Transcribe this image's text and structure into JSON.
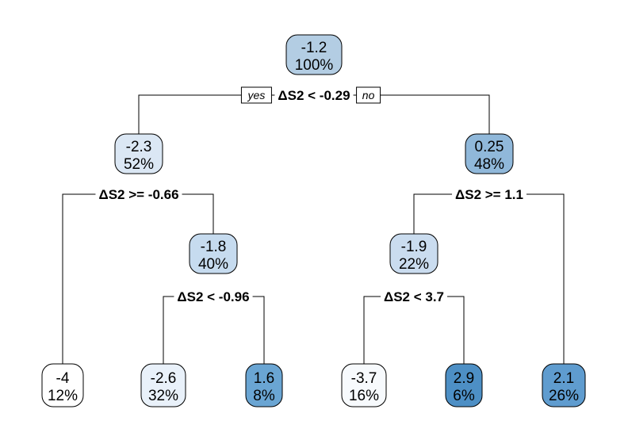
{
  "tree": {
    "branch_labels": {
      "yes": "yes",
      "no": "no"
    },
    "nodes": [
      {
        "id": "root",
        "value": "-1.2",
        "percent": "100%",
        "fill": "#b3cde3"
      },
      {
        "id": "n2",
        "value": "-2.3",
        "percent": "52%",
        "fill": "#dbe7f4"
      },
      {
        "id": "n3",
        "value": "0.25",
        "percent": "48%",
        "fill": "#90b8da"
      },
      {
        "id": "n4",
        "value": "-1.8",
        "percent": "40%",
        "fill": "#c6dbef"
      },
      {
        "id": "n5",
        "value": "-1.9",
        "percent": "22%",
        "fill": "#cadcef"
      },
      {
        "id": "l1",
        "value": "-4",
        "percent": "12%",
        "fill": "#ffffff"
      },
      {
        "id": "l2",
        "value": "-2.6",
        "percent": "32%",
        "fill": "#e9f1fa"
      },
      {
        "id": "l3",
        "value": "1.6",
        "percent": "8%",
        "fill": "#6aa5d3"
      },
      {
        "id": "l4",
        "value": "-3.7",
        "percent": "16%",
        "fill": "#f7fafd"
      },
      {
        "id": "l5",
        "value": "2.9",
        "percent": "6%",
        "fill": "#4d8fc5"
      },
      {
        "id": "l6",
        "value": "2.1",
        "percent": "26%",
        "fill": "#5f9ccf"
      }
    ],
    "splits": [
      {
        "id": "s_root",
        "label": "ΔS2 < -0.29"
      },
      {
        "id": "s_n2",
        "label": "ΔS2 >= -0.66"
      },
      {
        "id": "s_n3",
        "label": "ΔS2 >= 1.1"
      },
      {
        "id": "s_n4",
        "label": "ΔS2 < -0.96"
      },
      {
        "id": "s_n5",
        "label": "ΔS2 < 3.7"
      }
    ]
  }
}
